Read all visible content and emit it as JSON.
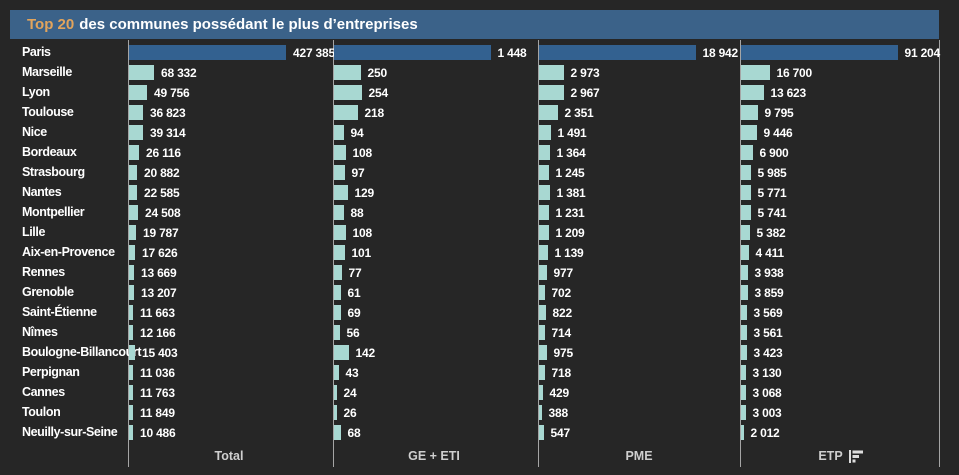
{
  "header": {
    "highlight": "Top 20",
    "title": "des communes possédant le plus d’entreprises"
  },
  "colors": {
    "background": "#262626",
    "header_bar": "#3b6289",
    "highlight_text": "#e2a45c",
    "title_text": "#ffffff",
    "bar_highlight": "#336190",
    "bar_default": "#a8d8d2",
    "axis_line": "#c6c6c6",
    "value_text": "#ffffff",
    "footer_text": "#cfcfcf",
    "icon_color": "#dddddd"
  },
  "columns": [
    {
      "key": "total",
      "label": "Total",
      "sorted": false
    },
    {
      "key": "ge-eti",
      "label": "GE + ETI",
      "sorted": false
    },
    {
      "key": "pme",
      "label": "PME",
      "sorted": false
    },
    {
      "key": "etp",
      "label": "ETP",
      "sorted": true,
      "sort_icon": "sort-descending-icon"
    }
  ],
  "chart_data": {
    "type": "bar",
    "orientation": "horizontal",
    "title": "Top 20 des communes possédant le plus d’entreprises",
    "categories": [
      "Paris",
      "Marseille",
      "Lyon",
      "Toulouse",
      "Nice",
      "Bordeaux",
      "Strasbourg",
      "Nantes",
      "Montpellier",
      "Lille",
      "Aix-en-Provence",
      "Rennes",
      "Grenoble",
      "Saint-Étienne",
      "Nîmes",
      "Boulogne-Billancourt",
      "Perpignan",
      "Cannes",
      "Toulon",
      "Neuilly-sur-Seine"
    ],
    "series": [
      {
        "name": "Total",
        "values": [
          427385,
          68332,
          49756,
          36823,
          39314,
          26116,
          20882,
          22585,
          24508,
          19787,
          17626,
          13669,
          13207,
          11663,
          12166,
          15403,
          11036,
          11763,
          11849,
          10486
        ]
      },
      {
        "name": "GE + ETI",
        "values": [
          1448,
          250,
          254,
          218,
          94,
          108,
          97,
          129,
          88,
          108,
          101,
          77,
          61,
          69,
          56,
          142,
          43,
          24,
          26,
          68
        ]
      },
      {
        "name": "PME",
        "values": [
          18942,
          2973,
          2967,
          2351,
          1491,
          1364,
          1245,
          1381,
          1231,
          1209,
          1139,
          977,
          702,
          822,
          714,
          975,
          718,
          429,
          388,
          547
        ]
      },
      {
        "name": "ETP",
        "values": [
          91204,
          16700,
          13623,
          9795,
          9446,
          6900,
          5985,
          5771,
          5741,
          5382,
          4411,
          3938,
          3859,
          3569,
          3561,
          3423,
          3130,
          3068,
          3003,
          2012
        ]
      }
    ],
    "sorted_by": "ETP",
    "sort_order": "descending",
    "number_format": "space-thousands",
    "highlight_category": "Paris",
    "legend": "none",
    "grid": "column-separators-only"
  }
}
